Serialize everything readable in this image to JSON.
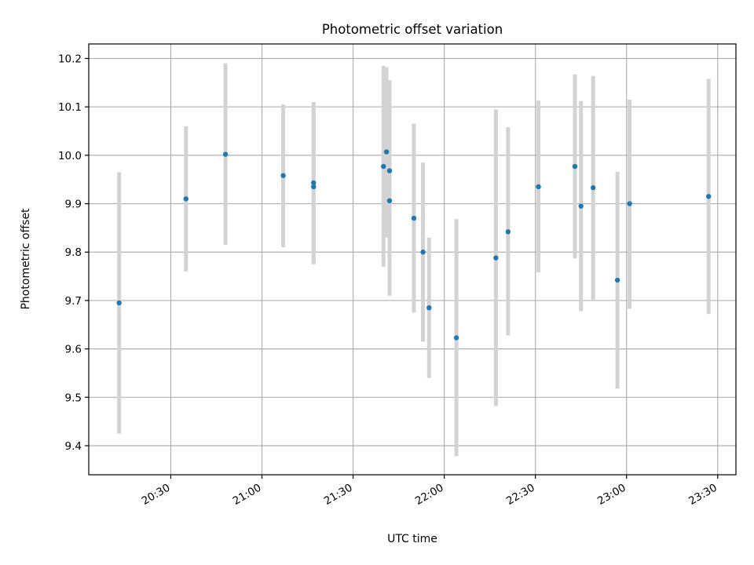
{
  "chart_data": {
    "type": "scatter",
    "title": "Photometric offset variation",
    "xlabel": "UTC time",
    "ylabel": "Photometric offset",
    "x_axis_type": "time",
    "xlim": [
      "20:03",
      "23:36"
    ],
    "ylim": [
      9.34,
      10.23
    ],
    "xticks": [
      "20:30",
      "21:00",
      "21:30",
      "22:00",
      "22:30",
      "23:00",
      "23:30"
    ],
    "yticks": [
      9.4,
      9.5,
      9.6,
      9.7,
      9.8,
      9.9,
      10.0,
      10.1,
      10.2
    ],
    "ytick_labels": [
      "9.4",
      "9.5",
      "9.6",
      "9.7",
      "9.8",
      "9.9",
      "10.0",
      "10.1",
      "10.2"
    ],
    "grid": true,
    "colors": {
      "point": "#1f77b4",
      "errorbar": "#d3d3d3"
    },
    "points": [
      {
        "x": "20:13",
        "y": 9.695,
        "ylow": 9.425,
        "yhigh": 9.965
      },
      {
        "x": "20:35",
        "y": 9.91,
        "ylow": 9.76,
        "yhigh": 10.06
      },
      {
        "x": "20:48",
        "y": 10.002,
        "ylow": 9.815,
        "yhigh": 10.19
      },
      {
        "x": "21:07",
        "y": 9.958,
        "ylow": 9.81,
        "yhigh": 10.105
      },
      {
        "x": "21:17",
        "y": 9.935,
        "ylow": 9.775,
        "yhigh": 10.095
      },
      {
        "x": "21:17",
        "y": 9.943,
        "ylow": 9.775,
        "yhigh": 10.11
      },
      {
        "x": "21:40",
        "y": 9.977,
        "ylow": 9.77,
        "yhigh": 10.185
      },
      {
        "x": "21:41",
        "y": 10.007,
        "ylow": 9.83,
        "yhigh": 10.182
      },
      {
        "x": "21:42",
        "y": 9.968,
        "ylow": 9.78,
        "yhigh": 10.155
      },
      {
        "x": "21:42",
        "y": 9.906,
        "ylow": 9.71,
        "yhigh": 10.1
      },
      {
        "x": "21:50",
        "y": 9.87,
        "ylow": 9.675,
        "yhigh": 10.065
      },
      {
        "x": "21:53",
        "y": 9.8,
        "ylow": 9.615,
        "yhigh": 9.985
      },
      {
        "x": "21:55",
        "y": 9.685,
        "ylow": 9.54,
        "yhigh": 9.83
      },
      {
        "x": "22:04",
        "y": 9.623,
        "ylow": 9.378,
        "yhigh": 9.868
      },
      {
        "x": "22:17",
        "y": 9.788,
        "ylow": 9.482,
        "yhigh": 10.095
      },
      {
        "x": "22:21",
        "y": 9.842,
        "ylow": 9.628,
        "yhigh": 10.058
      },
      {
        "x": "22:31",
        "y": 9.935,
        "ylow": 9.758,
        "yhigh": 10.113
      },
      {
        "x": "22:43",
        "y": 9.977,
        "ylow": 9.787,
        "yhigh": 10.167
      },
      {
        "x": "22:45",
        "y": 9.895,
        "ylow": 9.678,
        "yhigh": 10.112
      },
      {
        "x": "22:49",
        "y": 9.933,
        "ylow": 9.702,
        "yhigh": 10.164
      },
      {
        "x": "22:57",
        "y": 9.742,
        "ylow": 9.518,
        "yhigh": 9.966
      },
      {
        "x": "23:01",
        "y": 9.9,
        "ylow": 9.683,
        "yhigh": 10.115
      },
      {
        "x": "23:27",
        "y": 9.915,
        "ylow": 9.672,
        "yhigh": 10.158
      }
    ]
  }
}
